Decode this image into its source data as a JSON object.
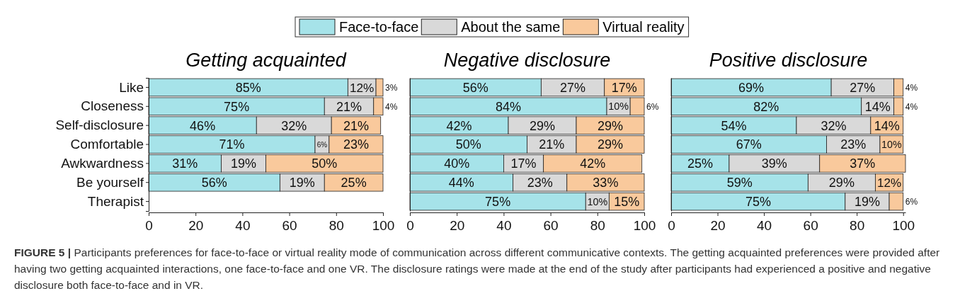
{
  "chart_data": [
    {
      "type": "bar",
      "orientation": "horizontal",
      "stacked": true,
      "title": "Getting acquainted",
      "categories": [
        "Like",
        "Closeness",
        "Self-disclosure",
        "Comfortable",
        "Awkwardness",
        "Be yourself",
        "Therapist"
      ],
      "xlim": [
        0,
        100
      ],
      "xticks": [
        0,
        20,
        40,
        60,
        80,
        100
      ],
      "legend": "top",
      "grid": false,
      "series": [
        {
          "name": "Face-to-face",
          "color": "#a6e3e9",
          "values": [
            85,
            75,
            46,
            71,
            31,
            56,
            null
          ],
          "value_labels": [
            "85%",
            "75%",
            "46%",
            "71%",
            "31%",
            "56%",
            null
          ]
        },
        {
          "name": "About the same",
          "color": "#d9d9d9",
          "values": [
            12,
            21,
            32,
            6,
            19,
            19,
            null
          ],
          "value_labels": [
            "12%",
            "21%",
            "32%",
            "6%",
            "19%",
            "19%",
            null
          ]
        },
        {
          "name": "Virtual reality",
          "color": "#f9c99c",
          "values": [
            3,
            4,
            21,
            23,
            50,
            25,
            null
          ],
          "value_labels": [
            "3%",
            "4%",
            "21%",
            "23%",
            "50%",
            "25%",
            null
          ]
        }
      ],
      "annotations": [
        "FIGURE 5 | Participants preferences for face-to-face or virtual reality mode of communication across different communicative contexts. The getting acquainted preferences were provided after having two getting acquainted interactions, one face-to-face and one VR. The disclosure ratings were made at the end of the study after participants had experienced a positive and negative disclosure both face-to-face and in VR."
      ]
    },
    {
      "type": "bar",
      "orientation": "horizontal",
      "stacked": true,
      "title": "Negative disclosure",
      "categories": [
        null,
        null,
        null,
        null,
        null,
        null,
        null
      ],
      "tick_labels": "x",
      "xlim": [
        0,
        100
      ],
      "xticks": [
        0,
        20,
        40,
        60,
        80,
        100
      ],
      "grid": false,
      "series": [
        {
          "color": "#a6e3e9",
          "values": [
            56,
            84,
            42,
            50,
            40,
            44,
            75
          ],
          "value_labels": [
            "56%",
            "84%",
            "42%",
            "50%",
            "40%",
            "44%",
            "75%"
          ]
        },
        {
          "color": "#d9d9d9",
          "values": [
            27,
            10,
            29,
            21,
            17,
            23,
            10
          ],
          "value_labels": [
            "27%",
            "10%",
            "29%",
            "21%",
            "17%",
            "23%",
            "10%"
          ]
        },
        {
          "color": "#f9c99c",
          "values": [
            17,
            6,
            29,
            29,
            42,
            33,
            15
          ],
          "value_labels": [
            "17%",
            "6%",
            "29%",
            "29%",
            "42%",
            "33%",
            "15%"
          ]
        }
      ]
    },
    {
      "type": "bar",
      "orientation": "horizontal",
      "stacked": true,
      "title": "Positive disclosure",
      "categories": [
        null,
        null,
        null,
        null,
        null,
        null,
        null
      ],
      "tick_labels": "x",
      "xlim": [
        0,
        101
      ],
      "xticks": [
        0,
        20,
        40,
        60,
        80,
        100
      ],
      "grid": false,
      "series": [
        {
          "color": "#a6e3e9",
          "values": [
            69,
            82,
            54,
            67,
            25,
            59,
            75
          ],
          "value_labels": [
            "69%",
            "82%",
            "54%",
            "67%",
            "25%",
            "59%",
            "75%"
          ]
        },
        {
          "color": "#d9d9d9",
          "values": [
            27,
            14,
            32,
            23,
            39,
            29,
            19
          ],
          "value_labels": [
            "27%",
            "14%",
            "32%",
            "23%",
            "39%",
            "29%",
            "19%"
          ]
        },
        {
          "color": "#f9c99c",
          "values": [
            4,
            4,
            14,
            10,
            37,
            12,
            6
          ],
          "value_labels": [
            "4%",
            "4%",
            "14%",
            "10%",
            "37%",
            "12%",
            "6%"
          ]
        }
      ]
    }
  ]
}
